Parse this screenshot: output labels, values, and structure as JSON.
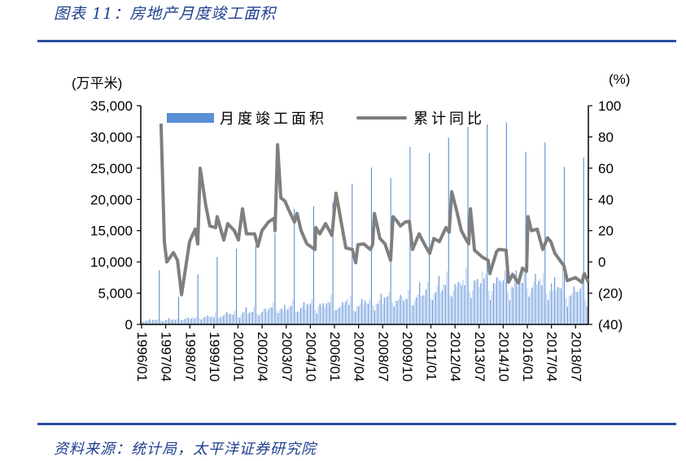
{
  "header": {
    "title": "图表 11：房地产月度竣工面积"
  },
  "footer": {
    "source": "资料来源：统计局，太平洋证券研究院"
  },
  "colors": {
    "bar_dark": "#5b8fd6",
    "bar_light": "#a9c6ec",
    "line": "#7f7f7f",
    "rule": "#2a4f9e",
    "title": "#1f3f8f"
  },
  "chart_data": {
    "type": "bar+line",
    "title": "房地产月度竣工面积",
    "legend": [
      "月度竣工面积",
      "累计同比"
    ],
    "legend_position": "top",
    "left_axis": {
      "unit_label": "(万平米)",
      "ylim": [
        0,
        35000
      ],
      "ticks": [
        "0",
        "5,000",
        "10,000",
        "15,000",
        "20,000",
        "25,000",
        "30,000",
        "35,000"
      ]
    },
    "right_axis": {
      "unit_label": "(%)",
      "ylim": [
        -40,
        100
      ],
      "ticks": [
        "(40)",
        "(20)",
        "0",
        "20",
        "40",
        "60",
        "80",
        "100"
      ]
    },
    "x_axis": {
      "start": "1996/01",
      "end": "2019/02",
      "ticks": [
        "1996/01",
        "1997/04",
        "1998/07",
        "1999/10",
        "2001/01",
        "2002/04",
        "2003/07",
        "2004/10",
        "2006/01",
        "2007/04",
        "2008/07",
        "2009/10",
        "2011/01",
        "2012/04",
        "2013/07",
        "2014/10",
        "2016/01",
        "2017/04",
        "2018/07"
      ]
    },
    "bars_monthly_by_year": [
      {
        "year": 1996,
        "typical": 700,
        "dec": 8700
      },
      {
        "year": 1997,
        "typical": 800,
        "dec": 4400
      },
      {
        "year": 1998,
        "typical": 1000,
        "dec": 8000
      },
      {
        "year": 1999,
        "typical": 1300,
        "dec": 10800
      },
      {
        "year": 2000,
        "typical": 1700,
        "dec": 12100
      },
      {
        "year": 2001,
        "typical": 2000,
        "dec": 12600
      },
      {
        "year": 2002,
        "typical": 2400,
        "dec": 14600
      },
      {
        "year": 2003,
        "typical": 2800,
        "dec": 18500
      },
      {
        "year": 2004,
        "typical": 3000,
        "dec": 18900
      },
      {
        "year": 2005,
        "typical": 3300,
        "dec": 19500
      },
      {
        "year": 2006,
        "typical": 3500,
        "dec": 22500
      },
      {
        "year": 2007,
        "typical": 3700,
        "dec": 25100
      },
      {
        "year": 2008,
        "typical": 4200,
        "dec": 23400
      },
      {
        "year": 2009,
        "typical": 4500,
        "dec": 28400
      },
      {
        "year": 2010,
        "typical": 5000,
        "dec": 27400
      },
      {
        "year": 2011,
        "typical": 5800,
        "dec": 29900
      },
      {
        "year": 2012,
        "typical": 6500,
        "dec": 31600
      },
      {
        "year": 2013,
        "typical": 7000,
        "dec": 32000
      },
      {
        "year": 2014,
        "typical": 7300,
        "dec": 32300
      },
      {
        "year": 2015,
        "typical": 7000,
        "dec": 27600
      },
      {
        "year": 2016,
        "typical": 7300,
        "dec": 29100
      },
      {
        "year": 2017,
        "typical": 6500,
        "dec": 25200
      },
      {
        "year": 2018,
        "typical": 5500,
        "dec": 26700
      },
      {
        "year": 2019,
        "typical": 5000,
        "dec": null,
        "months": 2
      }
    ],
    "line_yoy": [
      [
        1997.01,
        88.5
      ],
      [
        1997.18,
        12.6
      ],
      [
        1997.31,
        0
      ],
      [
        1997.65,
        6
      ],
      [
        1997.86,
        1
      ],
      [
        1998.07,
        -21
      ],
      [
        1998.49,
        13
      ],
      [
        1998.78,
        21
      ],
      [
        1998.91,
        11.5
      ],
      [
        1999.04,
        60
      ],
      [
        1999.33,
        36
      ],
      [
        1999.54,
        23
      ],
      [
        1999.84,
        22
      ],
      [
        1999.92,
        29
      ],
      [
        2000.26,
        14
      ],
      [
        2000.47,
        24.5
      ],
      [
        2000.81,
        20
      ],
      [
        2001.02,
        14
      ],
      [
        2001.23,
        34
      ],
      [
        2001.44,
        18
      ],
      [
        2001.86,
        18
      ],
      [
        2002.03,
        10
      ],
      [
        2002.24,
        20
      ],
      [
        2002.58,
        25.5
      ],
      [
        2002.88,
        28
      ],
      [
        2002.92,
        20
      ],
      [
        2003.05,
        75
      ],
      [
        2003.22,
        41
      ],
      [
        2003.43,
        39
      ],
      [
        2003.64,
        33
      ],
      [
        2003.93,
        25.5
      ],
      [
        2004.06,
        31
      ],
      [
        2004.27,
        20
      ],
      [
        2004.57,
        11.5
      ],
      [
        2004.99,
        8
      ],
      [
        2005.03,
        22
      ],
      [
        2005.24,
        18
      ],
      [
        2005.54,
        24.5
      ],
      [
        2005.87,
        17
      ],
      [
        2006.08,
        44
      ],
      [
        2006.59,
        9
      ],
      [
        2006.93,
        8
      ],
      [
        2007.1,
        -0.5
      ],
      [
        2007.22,
        11
      ],
      [
        2007.52,
        11.5
      ],
      [
        2007.86,
        8
      ],
      [
        2007.98,
        11
      ],
      [
        2008.07,
        31
      ],
      [
        2008.36,
        15
      ],
      [
        2008.62,
        11.5
      ],
      [
        2008.91,
        1
      ],
      [
        2009.04,
        29
      ],
      [
        2009.25,
        26
      ],
      [
        2009.42,
        23
      ],
      [
        2009.67,
        25.5
      ],
      [
        2009.88,
        26
      ],
      [
        2010.05,
        8
      ],
      [
        2010.39,
        18
      ],
      [
        2010.68,
        11
      ],
      [
        2010.94,
        5.5
      ],
      [
        2011.15,
        15
      ],
      [
        2011.44,
        13
      ],
      [
        2011.78,
        22
      ],
      [
        2011.95,
        19
      ],
      [
        2012.08,
        45
      ],
      [
        2012.37,
        31
      ],
      [
        2012.58,
        20
      ],
      [
        2012.84,
        14
      ],
      [
        2012.96,
        11.5
      ],
      [
        2013.05,
        34
      ],
      [
        2013.26,
        7.5
      ],
      [
        2013.68,
        3
      ],
      [
        2013.97,
        1
      ],
      [
        2014.06,
        -7.5
      ],
      [
        2014.4,
        6.5
      ],
      [
        2014.52,
        8
      ],
      [
        2014.9,
        7.5
      ],
      [
        2015.03,
        -13
      ],
      [
        2015.24,
        -8
      ],
      [
        2015.54,
        -13.5
      ],
      [
        2015.75,
        -4
      ],
      [
        2015.96,
        -6
      ],
      [
        2016.04,
        29
      ],
      [
        2016.21,
        20
      ],
      [
        2016.51,
        21
      ],
      [
        2016.8,
        8
      ],
      [
        2017.05,
        15.5
      ],
      [
        2017.22,
        13
      ],
      [
        2017.43,
        5.5
      ],
      [
        2017.69,
        1
      ],
      [
        2017.9,
        -2.5
      ],
      [
        2018.07,
        -12
      ],
      [
        2018.49,
        -10
      ],
      [
        2018.83,
        -13
      ],
      [
        2018.96,
        -7.5
      ],
      [
        2019.16,
        -13
      ]
    ]
  }
}
